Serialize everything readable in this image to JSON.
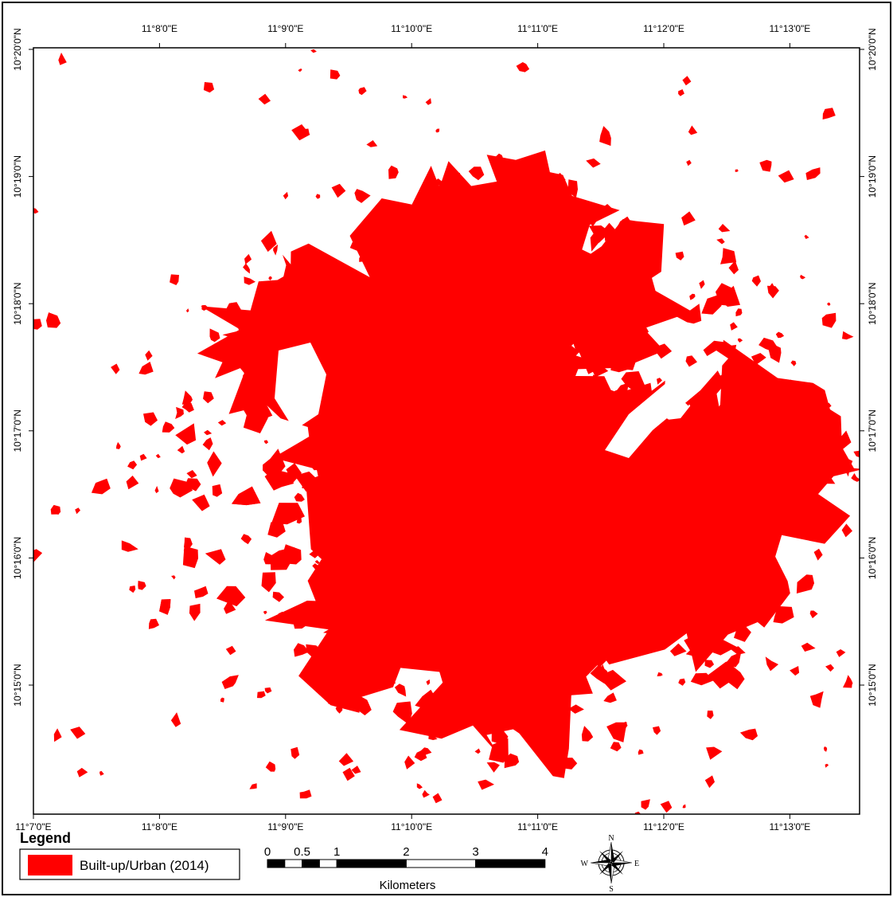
{
  "map": {
    "top_labels": [
      "11°8'0\"E",
      "11°9'0\"E",
      "11°10'0\"E",
      "11°11'0\"E",
      "11°12'0\"E",
      "11°13'0\"E"
    ],
    "bottom_labels": [
      "11°7'0\"E",
      "11°8'0\"E",
      "11°9'0\"E",
      "11°10'0\"E",
      "11°11'0\"E",
      "11°12'0\"E",
      "11°13'0\"E"
    ],
    "left_labels": [
      "10°20'0\"N",
      "10°19'0\"N",
      "10°18'0\"N",
      "10°17'0\"N",
      "10°16'0\"N",
      "10°15'0\"N"
    ],
    "right_labels": [
      "10°20'0\"N",
      "10°19'0\"N",
      "10°18'0\"N",
      "10°17'0\"N",
      "10°16'0\"N",
      "10°15'0\"N"
    ]
  },
  "legend": {
    "title": "Legend",
    "item": "Built-up/Urban (2014)"
  },
  "scale_bar": {
    "labels": [
      0,
      0.5,
      1,
      2,
      3,
      4
    ],
    "unit": "Kilometers"
  },
  "compass": {
    "n": "N",
    "s": "S",
    "e": "E",
    "w": "W"
  }
}
